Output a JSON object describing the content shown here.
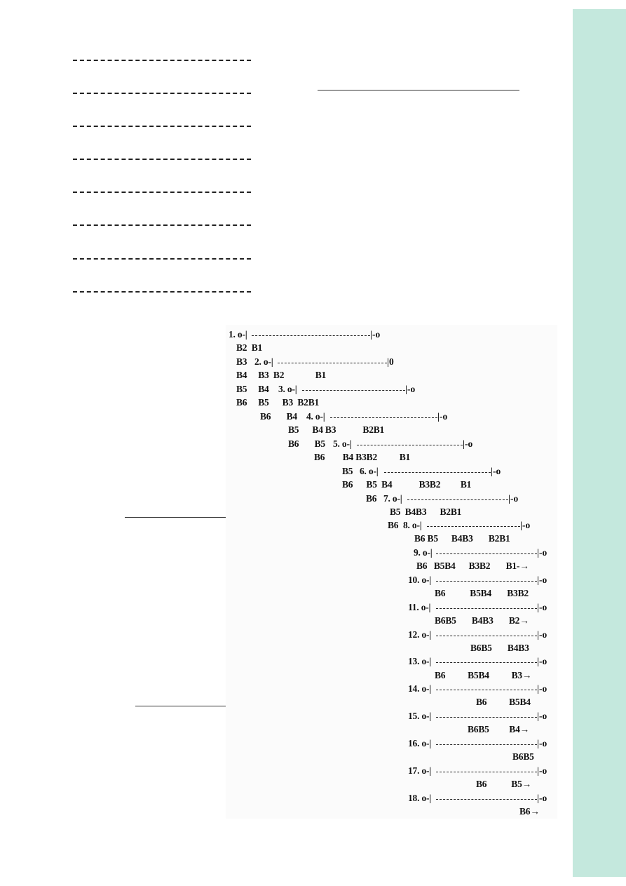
{
  "sidebar": {
    "color": "#c4e8dd"
  },
  "figure": {
    "rows": [
      {
        "n": "1.",
        "left": "o-|",
        "right": "|-o",
        "labels": [
          [
            "B2",
            "B1"
          ]
        ]
      },
      {
        "n": "2.",
        "left": "o-|",
        "right": "|0",
        "labels": []
      },
      {
        "n": "3.",
        "left": "o-|",
        "right": "|-o",
        "labels": []
      },
      {
        "n": "4.",
        "left": "o-|",
        "right": "|-o",
        "labels": []
      },
      {
        "n": "5.",
        "left": "o-|",
        "right": "|-o",
        "labels": []
      },
      {
        "n": "6.",
        "left": "o-|",
        "right": "|-o",
        "labels": []
      },
      {
        "n": "7.",
        "left": "o-|",
        "right": "|-o",
        "labels": []
      },
      {
        "n": "8.",
        "left": "o-|",
        "right": "|-o",
        "labels": []
      },
      {
        "n": "9.",
        "left": "o-|",
        "right": "|-o",
        "labels": []
      },
      {
        "n": "10.",
        "left": "o-|",
        "right": "|-o",
        "labels": []
      },
      {
        "n": "11.",
        "left": "o-|",
        "right": "|-o",
        "labels": []
      },
      {
        "n": "12.",
        "left": "o-|",
        "right": "|-o",
        "labels": []
      },
      {
        "n": "13.",
        "left": "o-|",
        "right": "|-o",
        "labels": []
      },
      {
        "n": "14.",
        "left": "o-|",
        "right": "|-o",
        "labels": []
      },
      {
        "n": "15.",
        "left": "o-|",
        "right": "|-o",
        "labels": []
      },
      {
        "n": "16.",
        "left": "o-|",
        "right": "|-o",
        "labels": []
      },
      {
        "n": "17.",
        "left": "o-|",
        "right": "|-o",
        "labels": []
      },
      {
        "n": "18.",
        "left": "o-|",
        "right": "|-o",
        "labels": []
      }
    ],
    "text_lines": [
      "B2  B1",
      "B3",
      "B4     B3  B2              B1",
      "B5     B4",
      "B6     B5      B3  B2B1",
      "B6       B4",
      "B5      B4 B3            B2B1",
      "B6       B5",
      "B6        B4 B3B2          B1",
      "B5",
      "B6      B5  B4            B3B2         B1",
      "B6",
      "B5  B4B3      B2B1",
      "B6",
      "B6 B5      B4B3       B2B1",
      "B6   B5B4      B3B2       B1-→",
      "B6           B5B4       B3B2",
      "B6B5       B4B3       B2→",
      "B6B5       B4B3",
      "B6          B5B4          B3→",
      "B6          B5B4",
      "B6B5         B4→",
      "B6B5",
      "B6           B5→",
      "B6→"
    ]
  }
}
